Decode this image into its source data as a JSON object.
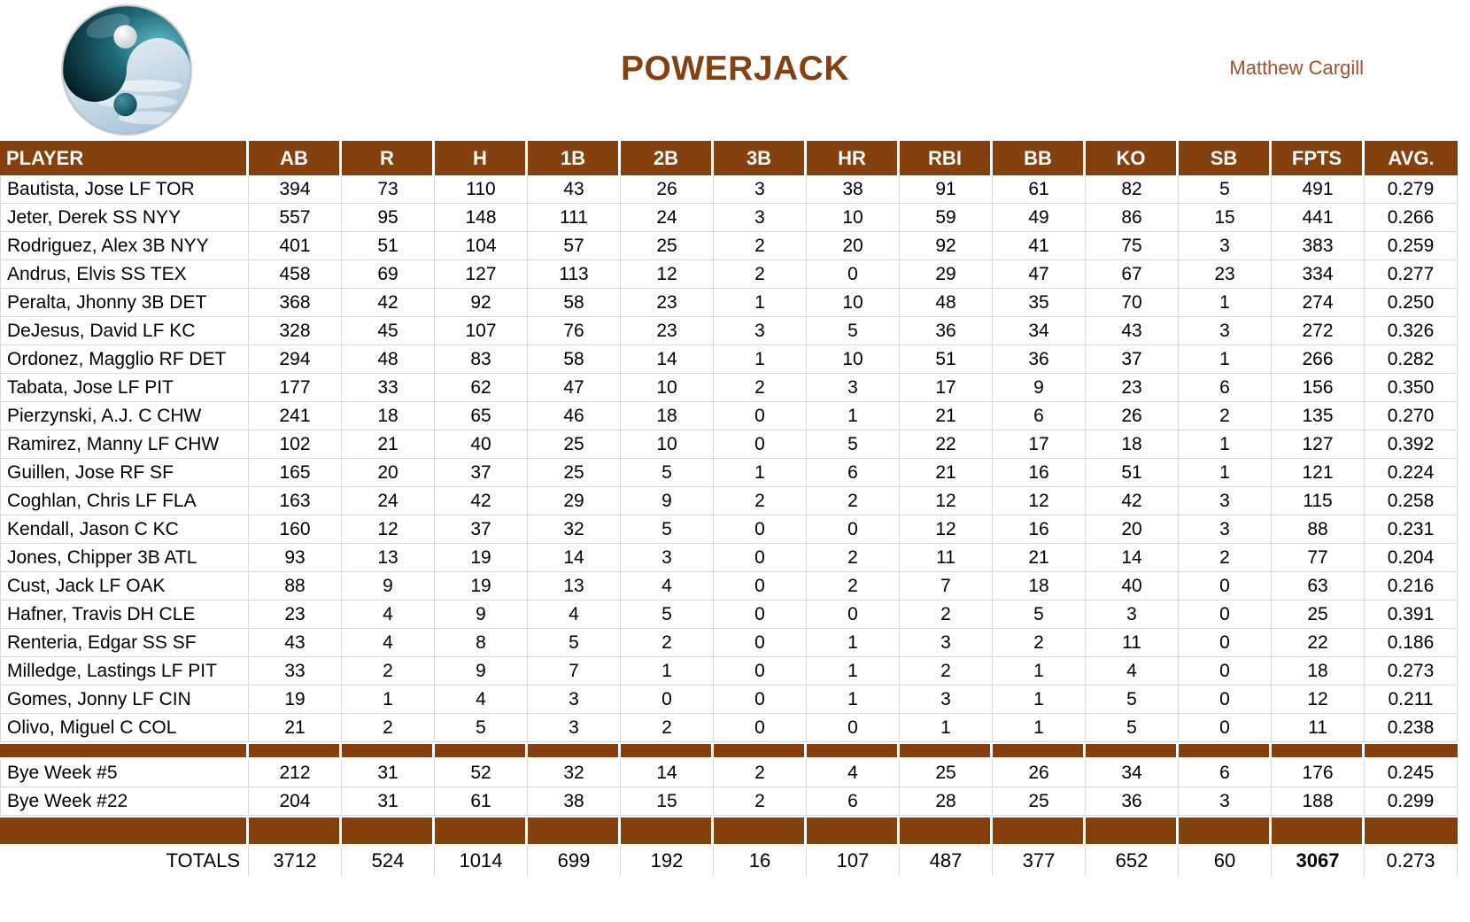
{
  "page": {
    "title": "POWERJACK",
    "owner": "Matthew Cargill",
    "logo_icon": "yin-yang-logo"
  },
  "colors": {
    "header_brown": "#84400E",
    "title_brown": "#84400E",
    "owner_rust": "#A0522D",
    "grid_line": "#D9D9D9",
    "logo_teal": "#1E6B7A",
    "logo_sky": "#CFDFEA"
  },
  "table": {
    "columns": [
      "PLAYER",
      "AB",
      "R",
      "H",
      "1B",
      "2B",
      "3B",
      "HR",
      "RBI",
      "BB",
      "KO",
      "SB",
      "FPTS",
      "AVG."
    ],
    "rows": [
      {
        "type": "player",
        "cells": [
          "Bautista, Jose LF TOR",
          "394",
          "73",
          "110",
          "43",
          "26",
          "3",
          "38",
          "91",
          "61",
          "82",
          "5",
          "491",
          "0.279"
        ]
      },
      {
        "type": "player",
        "cells": [
          "Jeter, Derek SS NYY",
          "557",
          "95",
          "148",
          "111",
          "24",
          "3",
          "10",
          "59",
          "49",
          "86",
          "15",
          "441",
          "0.266"
        ]
      },
      {
        "type": "player",
        "cells": [
          "Rodriguez, Alex 3B NYY",
          "401",
          "51",
          "104",
          "57",
          "25",
          "2",
          "20",
          "92",
          "41",
          "75",
          "3",
          "383",
          "0.259"
        ]
      },
      {
        "type": "player",
        "cells": [
          "Andrus, Elvis SS TEX",
          "458",
          "69",
          "127",
          "113",
          "12",
          "2",
          "0",
          "29",
          "47",
          "67",
          "23",
          "334",
          "0.277"
        ]
      },
      {
        "type": "player",
        "cells": [
          "Peralta, Jhonny 3B DET",
          "368",
          "42",
          "92",
          "58",
          "23",
          "1",
          "10",
          "48",
          "35",
          "70",
          "1",
          "274",
          "0.250"
        ]
      },
      {
        "type": "player",
        "cells": [
          "DeJesus, David LF KC",
          "328",
          "45",
          "107",
          "76",
          "23",
          "3",
          "5",
          "36",
          "34",
          "43",
          "3",
          "272",
          "0.326"
        ]
      },
      {
        "type": "player",
        "cells": [
          "Ordonez, Magglio RF DET",
          "294",
          "48",
          "83",
          "58",
          "14",
          "1",
          "10",
          "51",
          "36",
          "37",
          "1",
          "266",
          "0.282"
        ]
      },
      {
        "type": "player",
        "cells": [
          "Tabata, Jose LF PIT",
          "177",
          "33",
          "62",
          "47",
          "10",
          "2",
          "3",
          "17",
          "9",
          "23",
          "6",
          "156",
          "0.350"
        ]
      },
      {
        "type": "player",
        "cells": [
          "Pierzynski, A.J. C CHW",
          "241",
          "18",
          "65",
          "46",
          "18",
          "0",
          "1",
          "21",
          "6",
          "26",
          "2",
          "135",
          "0.270"
        ]
      },
      {
        "type": "player",
        "cells": [
          "Ramirez, Manny LF CHW",
          "102",
          "21",
          "40",
          "25",
          "10",
          "0",
          "5",
          "22",
          "17",
          "18",
          "1",
          "127",
          "0.392"
        ]
      },
      {
        "type": "player",
        "cells": [
          "Guillen, Jose RF SF",
          "165",
          "20",
          "37",
          "25",
          "5",
          "1",
          "6",
          "21",
          "16",
          "51",
          "1",
          "121",
          "0.224"
        ]
      },
      {
        "type": "player",
        "cells": [
          "Coghlan, Chris LF FLA",
          "163",
          "24",
          "42",
          "29",
          "9",
          "2",
          "2",
          "12",
          "12",
          "42",
          "3",
          "115",
          "0.258"
        ]
      },
      {
        "type": "player",
        "cells": [
          "Kendall, Jason C KC",
          "160",
          "12",
          "37",
          "32",
          "5",
          "0",
          "0",
          "12",
          "16",
          "20",
          "3",
          "88",
          "0.231"
        ]
      },
      {
        "type": "player",
        "cells": [
          "Jones, Chipper 3B ATL",
          "93",
          "13",
          "19",
          "14",
          "3",
          "0",
          "2",
          "11",
          "21",
          "14",
          "2",
          "77",
          "0.204"
        ]
      },
      {
        "type": "player",
        "cells": [
          "Cust, Jack LF OAK",
          "88",
          "9",
          "19",
          "13",
          "4",
          "0",
          "2",
          "7",
          "18",
          "40",
          "0",
          "63",
          "0.216"
        ]
      },
      {
        "type": "player",
        "cells": [
          "Hafner, Travis DH CLE",
          "23",
          "4",
          "9",
          "4",
          "5",
          "0",
          "0",
          "2",
          "5",
          "3",
          "0",
          "25",
          "0.391"
        ]
      },
      {
        "type": "player",
        "cells": [
          "Renteria, Edgar SS SF",
          "43",
          "4",
          "8",
          "5",
          "2",
          "0",
          "1",
          "3",
          "2",
          "11",
          "0",
          "22",
          "0.186"
        ]
      },
      {
        "type": "player",
        "cells": [
          "Milledge, Lastings LF PIT",
          "33",
          "2",
          "9",
          "7",
          "1",
          "0",
          "1",
          "2",
          "1",
          "4",
          "0",
          "18",
          "0.273"
        ]
      },
      {
        "type": "player",
        "cells": [
          "Gomes, Jonny LF CIN",
          "19",
          "1",
          "4",
          "3",
          "0",
          "0",
          "1",
          "3",
          "1",
          "5",
          "0",
          "12",
          "0.211"
        ]
      },
      {
        "type": "player",
        "cells": [
          "Olivo, Miguel C COL",
          "21",
          "2",
          "5",
          "3",
          "2",
          "0",
          "0",
          "1",
          "1",
          "5",
          "0",
          "11",
          "0.238"
        ]
      },
      {
        "type": "separator",
        "size": "thin"
      },
      {
        "type": "bye",
        "cells": [
          "Bye Week #5",
          "212",
          "31",
          "52",
          "32",
          "14",
          "2",
          "4",
          "25",
          "26",
          "34",
          "6",
          "176",
          "0.245"
        ]
      },
      {
        "type": "bye",
        "cells": [
          "Bye Week #22",
          "204",
          "31",
          "61",
          "38",
          "15",
          "2",
          "6",
          "28",
          "25",
          "36",
          "3",
          "188",
          "0.299"
        ]
      },
      {
        "type": "separator",
        "size": "thick"
      },
      {
        "type": "totals",
        "cells": [
          "TOTALS",
          "3712",
          "524",
          "1014",
          "699",
          "192",
          "16",
          "107",
          "487",
          "377",
          "652",
          "60",
          "3067",
          "0.273"
        ],
        "bold_cols": [
          12
        ]
      }
    ]
  }
}
